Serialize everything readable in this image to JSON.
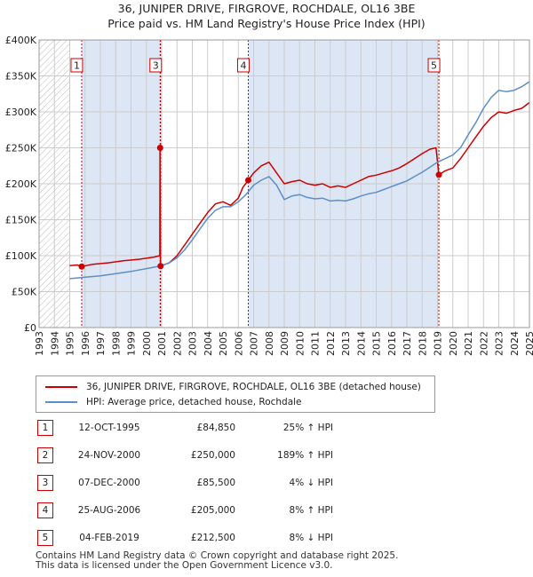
{
  "title_line1": "36, JUNIPER DRIVE, FIRGROVE, ROCHDALE, OL16 3BE",
  "title_line2": "Price paid vs. HM Land Registry's House Price Index (HPI)",
  "chart_data": {
    "type": "line",
    "xlim": [
      1993.0,
      2025.0
    ],
    "ylim": [
      0,
      400000
    ],
    "y_ticks": [
      0,
      50000,
      100000,
      150000,
      200000,
      250000,
      300000,
      350000,
      400000
    ],
    "y_tick_labels": [
      "£0",
      "£50K",
      "£100K",
      "£150K",
      "£200K",
      "£250K",
      "£300K",
      "£350K",
      "£400K"
    ],
    "x_ticks": [
      1993,
      1994,
      1995,
      1996,
      1997,
      1998,
      1999,
      2000,
      2001,
      2002,
      2003,
      2004,
      2005,
      2006,
      2007,
      2008,
      2009,
      2010,
      2011,
      2012,
      2013,
      2014,
      2015,
      2016,
      2017,
      2018,
      2019,
      2020,
      2021,
      2022,
      2023,
      2024,
      2025
    ],
    "hatch_range": [
      1993.0,
      1995.0
    ],
    "colors": {
      "property": "#cc0000",
      "hpi": "#5b8fc7",
      "band": "#dde6f4",
      "grid": "#cccccc"
    },
    "series": [
      {
        "name": "36, JUNIPER DRIVE, FIRGROVE, ROCHDALE, OL16 3BE (detached house)",
        "key": "property",
        "x": [
          1995.0,
          1995.5,
          1995.78,
          1996.5,
          1997.5,
          1998.5,
          1999.5,
          2000.5,
          2000.88,
          2000.89,
          2000.92,
          2000.93,
          2001.5,
          2002.0,
          2002.5,
          2003.0,
          2003.5,
          2004.0,
          2004.5,
          2005.0,
          2005.5,
          2006.0,
          2006.3,
          2006.65,
          2007.0,
          2007.5,
          2008.0,
          2008.5,
          2009.0,
          2009.5,
          2010.0,
          2010.5,
          2011.0,
          2011.5,
          2012.0,
          2012.5,
          2013.0,
          2013.5,
          2014.0,
          2014.5,
          2015.0,
          2015.5,
          2016.0,
          2016.5,
          2017.0,
          2017.5,
          2018.0,
          2018.5,
          2018.9,
          2019.09,
          2019.5,
          2020.0,
          2020.5,
          2021.0,
          2021.5,
          2022.0,
          2022.5,
          2023.0,
          2023.5,
          2024.0,
          2024.5,
          2025.0
        ],
        "y": [
          86000,
          87000,
          84850,
          88000,
          90000,
          93000,
          95000,
          98000,
          100000,
          250000,
          88000,
          85500,
          90000,
          100000,
          115000,
          130000,
          145000,
          160000,
          172000,
          175000,
          170000,
          180000,
          195000,
          205000,
          215000,
          225000,
          230000,
          215000,
          200000,
          203000,
          205000,
          200000,
          198000,
          200000,
          195000,
          197000,
          195000,
          200000,
          205000,
          210000,
          212000,
          215000,
          218000,
          222000,
          228000,
          235000,
          242000,
          248000,
          250000,
          212500,
          218000,
          222000,
          235000,
          250000,
          265000,
          280000,
          292000,
          300000,
          298000,
          302000,
          305000,
          313000
        ]
      },
      {
        "name": "HPI: Average price, detached house, Rochdale",
        "key": "hpi",
        "x": [
          1995.0,
          1995.5,
          1996.0,
          1996.5,
          1997.0,
          1997.5,
          1998.0,
          1998.5,
          1999.0,
          1999.5,
          2000.0,
          2000.5,
          2001.0,
          2001.5,
          2002.0,
          2002.5,
          2003.0,
          2003.5,
          2004.0,
          2004.5,
          2005.0,
          2005.5,
          2006.0,
          2006.5,
          2007.0,
          2007.5,
          2008.0,
          2008.5,
          2009.0,
          2009.5,
          2010.0,
          2010.5,
          2011.0,
          2011.5,
          2012.0,
          2012.5,
          2013.0,
          2013.5,
          2014.0,
          2014.5,
          2015.0,
          2015.5,
          2016.0,
          2016.5,
          2017.0,
          2017.5,
          2018.0,
          2018.5,
          2019.0,
          2019.5,
          2020.0,
          2020.5,
          2021.0,
          2021.5,
          2022.0,
          2022.5,
          2023.0,
          2023.5,
          2024.0,
          2024.5,
          2025.0
        ],
        "y": [
          68000,
          69000,
          70000,
          71000,
          72000,
          73500,
          75000,
          76500,
          78000,
          80000,
          82000,
          84000,
          86000,
          90000,
          97000,
          108000,
          122000,
          137000,
          152000,
          163000,
          168000,
          168000,
          175000,
          185000,
          198000,
          205000,
          210000,
          198000,
          178000,
          183000,
          185000,
          181000,
          179000,
          180000,
          176000,
          177000,
          176000,
          179000,
          183000,
          186000,
          188000,
          192000,
          196000,
          200000,
          204000,
          210000,
          216000,
          223000,
          230000,
          235000,
          240000,
          250000,
          268000,
          285000,
          305000,
          320000,
          330000,
          328000,
          330000,
          335000,
          342000
        ]
      }
    ],
    "sales": [
      {
        "label": "1",
        "date": "12-OCT-1995",
        "price": "£84,850",
        "hpi": "25% ↑ HPI",
        "x": 1995.78,
        "y": 84850,
        "vline": 1995.78,
        "box_x": 1995.78
      },
      {
        "label": "2",
        "date": "24-NOV-2000",
        "price": "£250,000",
        "hpi": "189% ↑ HPI",
        "x": 2000.9,
        "y": 250000,
        "vline": 2000.9,
        "box_x": null
      },
      {
        "label": "3",
        "date": "07-DEC-2000",
        "price": "£85,500",
        "hpi": "4% ↓ HPI",
        "x": 2000.93,
        "y": 85500,
        "vline": 2000.93,
        "box_x": 2000.93
      },
      {
        "label": "4",
        "date": "25-AUG-2006",
        "price": "£205,000",
        "hpi": "8% ↑ HPI",
        "x": 2006.65,
        "y": 205000,
        "vline": 2006.65,
        "box_x": 2006.65
      },
      {
        "label": "5",
        "date": "04-FEB-2019",
        "price": "£212,500",
        "hpi": "8% ↓ HPI",
        "x": 2019.09,
        "y": 212500,
        "vline": 2019.09,
        "box_x": 2019.09
      }
    ],
    "bands": [
      [
        1995.78,
        2000.93
      ],
      [
        2006.65,
        2019.09
      ]
    ]
  },
  "legend": {
    "property_label": "36, JUNIPER DRIVE, FIRGROVE, ROCHDALE, OL16 3BE (detached house)",
    "hpi_label": "HPI: Average price, detached house, Rochdale"
  },
  "footer_line1": "Contains HM Land Registry data © Crown copyright and database right 2025.",
  "footer_line2": "This data is licensed under the Open Government Licence v3.0."
}
